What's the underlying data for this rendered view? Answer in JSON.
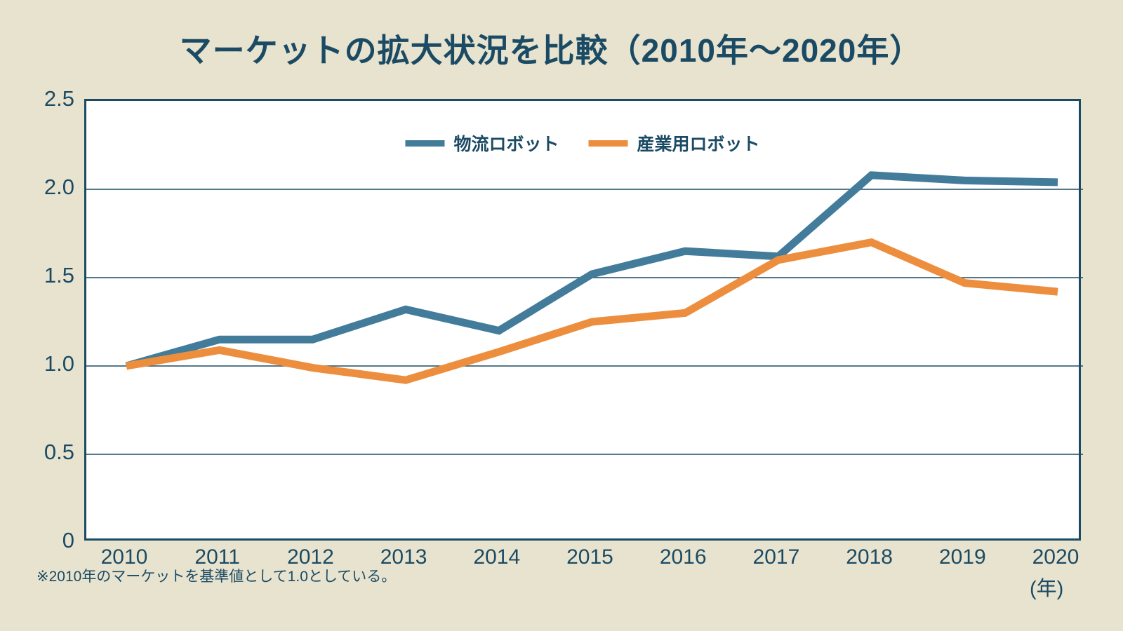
{
  "title": "マーケットの拡大状況を比較（2010年〜2020年）",
  "footnote": "※2010年のマーケットを基準値として1.0としている。",
  "x_axis_unit": "(年)",
  "colors": {
    "background": "#E8E3CF",
    "plot_background": "#FFFFFF",
    "text": "#1B4B64",
    "axis_border": "#1B4B64",
    "gridline": "#1B4B64",
    "series_logistics": "#427C9A",
    "series_industrial": "#EC8E3E"
  },
  "chart_data": {
    "type": "line",
    "title": "マーケットの拡大状況を比較（2010年〜2020年）",
    "x": [
      2010,
      2011,
      2012,
      2013,
      2014,
      2015,
      2016,
      2017,
      2018,
      2019,
      2020
    ],
    "x_tick_labels": [
      "2010",
      "2011",
      "2012",
      "2013",
      "2014",
      "2015",
      "2016",
      "2017",
      "2018",
      "2019",
      "2020"
    ],
    "xlabel": "(年)",
    "ylabel": "",
    "ylim": [
      0,
      2.5
    ],
    "yticks": [
      0,
      0.5,
      1.0,
      1.5,
      2.0,
      2.5
    ],
    "y_tick_labels": [
      "0",
      "0.5",
      "1.0",
      "1.5",
      "2.0",
      "2.5"
    ],
    "grid": true,
    "legend_position": "top-center",
    "baseline_note": "2010 = 1.0",
    "series": [
      {
        "name": "物流ロボット",
        "color": "#427C9A",
        "values": [
          1.0,
          1.15,
          1.15,
          1.32,
          1.2,
          1.52,
          1.65,
          1.62,
          2.08,
          2.05,
          2.04
        ]
      },
      {
        "name": "産業用ロボット",
        "color": "#EC8E3E",
        "values": [
          1.0,
          1.09,
          0.99,
          0.92,
          1.08,
          1.25,
          1.3,
          1.6,
          1.7,
          1.47,
          1.42
        ]
      }
    ]
  }
}
